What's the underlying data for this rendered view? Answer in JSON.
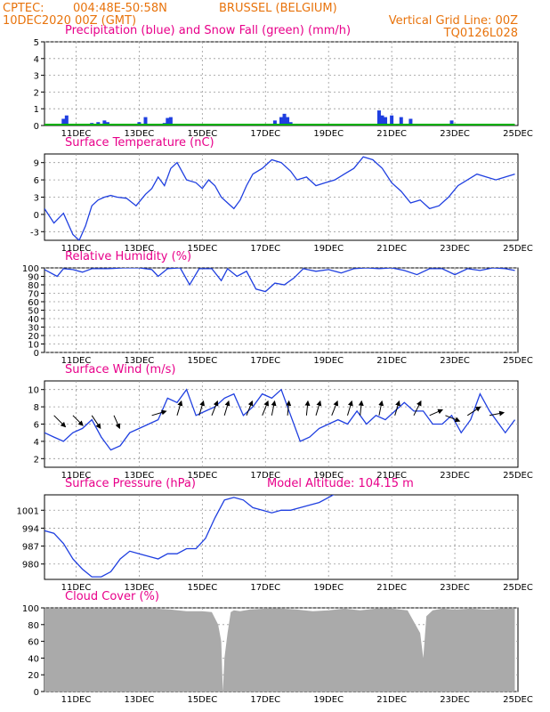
{
  "header": {
    "line1_left": "CPTEC:",
    "line1_coords": "004:48E-50:58N",
    "line1_station": "BRUSSEL (BELGIUM)",
    "line2_left": "10DEC2020 00Z (GMT)",
    "line2_right": "Vertical Grid Line: 00Z",
    "line3_right": "TQ0126L028"
  },
  "x_ticks": [
    "11DEC",
    "13DEC",
    "15DEC",
    "17DEC",
    "19DEC",
    "21DEC",
    "23DEC",
    "25DEC"
  ],
  "colors": {
    "header": "#e8730c",
    "title": "#e8008a",
    "line": "#1f3fe0",
    "precip": "#1f3fe0",
    "snow": "#00b000",
    "cloud": "#aaaaaa",
    "arrow": "#000000"
  },
  "chart_data": [
    {
      "type": "bar",
      "title": "Precipitation (blue) and Snow Fall (green) (mm/h)",
      "ylim": [
        0,
        5
      ],
      "yticks": [
        "0",
        "1",
        "2",
        "3",
        "4",
        "5"
      ],
      "series": [
        {
          "name": "Precipitation",
          "x": [
            0.5,
            0.6,
            0.7,
            1.2,
            1.5,
            1.7,
            1.9,
            2.0,
            2.2,
            2.4,
            2.8,
            3.0,
            3.2,
            3.8,
            3.9,
            4.0,
            4.2,
            4.4,
            4.6,
            5.0,
            5.2,
            5.5,
            7.0,
            7.3,
            7.5,
            7.6,
            7.7,
            7.8,
            8.0,
            10.6,
            10.7,
            10.8,
            11.0,
            11.3,
            11.6,
            11.9,
            12.9,
            13.1
          ],
          "values": [
            0.1,
            0.4,
            0.6,
            0.1,
            0.15,
            0.2,
            0.3,
            0.2,
            0.1,
            0.05,
            0.05,
            0.2,
            0.5,
            0.15,
            0.45,
            0.5,
            0.05,
            0.1,
            0.05,
            0.05,
            0.05,
            0.05,
            0.1,
            0.3,
            0.5,
            0.7,
            0.5,
            0.2,
            0.05,
            0.9,
            0.6,
            0.5,
            0.6,
            0.5,
            0.4,
            0.1,
            0.3,
            0.1
          ]
        },
        {
          "name": "Snow Fall",
          "x": [
            0,
            14.9
          ],
          "values": [
            0,
            0
          ]
        }
      ]
    },
    {
      "type": "line",
      "title": "Surface Temperature (nC)",
      "ylim": [
        -4.5,
        10.5
      ],
      "yticks": [
        "-3",
        "0",
        "3",
        "6",
        "9"
      ],
      "x": [
        0,
        0.3,
        0.6,
        0.9,
        1.1,
        1.3,
        1.5,
        1.7,
        1.9,
        2.1,
        2.3,
        2.6,
        2.9,
        3.2,
        3.4,
        3.6,
        3.8,
        4.0,
        4.2,
        4.5,
        4.8,
        5.0,
        5.2,
        5.4,
        5.6,
        5.8,
        6.0,
        6.2,
        6.4,
        6.6,
        6.9,
        7.2,
        7.5,
        7.8,
        8.0,
        8.3,
        8.6,
        8.9,
        9.2,
        9.5,
        9.8,
        10.1,
        10.4,
        10.7,
        11.0,
        11.3,
        11.6,
        11.9,
        12.2,
        12.5,
        12.8,
        13.1,
        13.4,
        13.7,
        14.0,
        14.3,
        14.6,
        14.9
      ],
      "values": [
        1,
        -1.5,
        0.2,
        -3.5,
        -4.5,
        -2,
        1.5,
        2.5,
        3,
        3.3,
        3,
        2.8,
        1.5,
        3.5,
        4.5,
        6.5,
        5,
        8,
        9,
        6,
        5.5,
        4.5,
        6,
        5,
        3,
        2,
        1,
        2.5,
        5,
        7,
        8,
        9.5,
        9,
        7.5,
        6,
        6.5,
        5,
        5.5,
        6,
        7,
        8,
        10,
        9.5,
        8,
        5.5,
        4,
        2,
        2.5,
        1,
        1.5,
        3,
        5,
        6,
        7,
        6.5,
        6,
        6.5,
        7
      ]
    },
    {
      "type": "line",
      "title": "Relative Humidity (%)",
      "ylim": [
        0,
        100
      ],
      "yticks": [
        "0",
        "10",
        "20",
        "30",
        "40",
        "50",
        "60",
        "70",
        "80",
        "90",
        "100"
      ],
      "x": [
        0,
        0.4,
        0.6,
        0.9,
        1.2,
        1.5,
        2.0,
        2.5,
        3.0,
        3.4,
        3.6,
        3.9,
        4.3,
        4.6,
        4.9,
        5.3,
        5.6,
        5.8,
        6.1,
        6.4,
        6.7,
        7.0,
        7.3,
        7.6,
        7.9,
        8.2,
        8.6,
        9.0,
        9.4,
        9.8,
        10.2,
        10.6,
        11.0,
        11.4,
        11.8,
        12.2,
        12.6,
        13.0,
        13.4,
        13.8,
        14.2,
        14.6,
        14.9
      ],
      "values": [
        98,
        90,
        99,
        98,
        95,
        99,
        99,
        100,
        100,
        98,
        90,
        99,
        100,
        80,
        99,
        99,
        85,
        99,
        90,
        96,
        75,
        72,
        82,
        80,
        88,
        99,
        96,
        98,
        94,
        99,
        100,
        99,
        100,
        97,
        92,
        99,
        99,
        92,
        99,
        97,
        100,
        99,
        97
      ]
    },
    {
      "type": "line",
      "title": "Surface Wind (m/s)",
      "ylim": [
        1,
        11
      ],
      "yticks": [
        "2",
        "4",
        "6",
        "8",
        "10"
      ],
      "x": [
        0,
        0.3,
        0.6,
        0.9,
        1.2,
        1.5,
        1.8,
        2.1,
        2.4,
        2.7,
        3.0,
        3.3,
        3.6,
        3.9,
        4.2,
        4.5,
        4.8,
        5.1,
        5.4,
        5.7,
        6.0,
        6.3,
        6.6,
        6.9,
        7.2,
        7.5,
        7.8,
        8.1,
        8.4,
        8.7,
        9.0,
        9.3,
        9.6,
        9.9,
        10.2,
        10.5,
        10.8,
        11.1,
        11.4,
        11.7,
        12.0,
        12.3,
        12.6,
        12.9,
        13.2,
        13.5,
        13.8,
        14.1,
        14.4,
        14.6,
        14.9
      ],
      "values": [
        5,
        4.5,
        4,
        5,
        5.5,
        6.5,
        4.5,
        3,
        3.5,
        5,
        5.5,
        6,
        6.5,
        9,
        8.5,
        10,
        7,
        7.5,
        8,
        9,
        9.5,
        7,
        8,
        9.5,
        9,
        10,
        7,
        4,
        4.5,
        5.5,
        6,
        6.5,
        6,
        7.5,
        6,
        7,
        6.5,
        7.5,
        8.5,
        7.5,
        7.5,
        6,
        6,
        7,
        5,
        6.5,
        9.5,
        7.5,
        6,
        5,
        6.5
      ],
      "wind_vectors": [
        {
          "x": 0.3,
          "u": 0.8,
          "v": -0.8
        },
        {
          "x": 0.9,
          "u": 0.7,
          "v": -0.7
        },
        {
          "x": 1.5,
          "u": 0.6,
          "v": -0.9
        },
        {
          "x": 2.2,
          "u": 0.4,
          "v": -0.9
        },
        {
          "x": 3.4,
          "u": 1.0,
          "v": 0.3
        },
        {
          "x": 4.2,
          "u": 0.3,
          "v": 1.0
        },
        {
          "x": 4.9,
          "u": 0.3,
          "v": 1.0
        },
        {
          "x": 5.3,
          "u": 0.4,
          "v": 1.0
        },
        {
          "x": 5.7,
          "u": 0.3,
          "v": 1.0
        },
        {
          "x": 6.4,
          "u": 0.4,
          "v": 1.0
        },
        {
          "x": 6.9,
          "u": 0.4,
          "v": 1.0
        },
        {
          "x": 7.2,
          "u": 0.2,
          "v": 1.0
        },
        {
          "x": 7.7,
          "u": 0.1,
          "v": 1.0
        },
        {
          "x": 8.3,
          "u": 0.1,
          "v": 1.0
        },
        {
          "x": 8.6,
          "u": 0.3,
          "v": 1.0
        },
        {
          "x": 9.1,
          "u": 0.4,
          "v": 1.0
        },
        {
          "x": 9.6,
          "u": 0.3,
          "v": 1.0
        },
        {
          "x": 10.0,
          "u": 0.1,
          "v": 1.0
        },
        {
          "x": 10.6,
          "u": 0.2,
          "v": 1.0
        },
        {
          "x": 11.1,
          "u": 0.3,
          "v": 1.0
        },
        {
          "x": 11.7,
          "u": 0.5,
          "v": 1.0
        },
        {
          "x": 12.2,
          "u": 0.9,
          "v": 0.4
        },
        {
          "x": 12.7,
          "u": 1.0,
          "v": -0.4
        },
        {
          "x": 13.4,
          "u": 0.9,
          "v": 0.6
        },
        {
          "x": 14.1,
          "u": 1.0,
          "v": 0.2
        }
      ]
    },
    {
      "type": "line",
      "title": "Surface Pressure (hPa)",
      "subtitle": "Model Altitude: 104.15 m",
      "ylim": [
        974,
        1007
      ],
      "yticks": [
        "980",
        "987",
        "994",
        "1001"
      ],
      "x": [
        0,
        0.3,
        0.6,
        0.9,
        1.2,
        1.5,
        1.8,
        2.1,
        2.4,
        2.7,
        3.0,
        3.3,
        3.6,
        3.9,
        4.2,
        4.5,
        4.8,
        5.1,
        5.4,
        5.7,
        6.0,
        6.3,
        6.6,
        6.9,
        7.2,
        7.5,
        7.8,
        8.1,
        8.4,
        8.7,
        9.0,
        9.3
      ],
      "values": [
        993,
        992,
        988,
        982,
        978,
        975,
        975,
        977,
        982,
        985,
        984,
        983,
        982,
        984,
        984,
        986,
        986,
        990,
        998,
        1005,
        1006,
        1005,
        1002,
        1001,
        1000,
        1001,
        1001,
        1002,
        1003,
        1004,
        1006,
        1008
      ]
    },
    {
      "type": "area",
      "title": "Cloud Cover (%)",
      "ylim": [
        0,
        100
      ],
      "yticks": [
        "0",
        "20",
        "40",
        "60",
        "80",
        "100"
      ],
      "x": [
        0,
        0.5,
        1.0,
        1.5,
        2.0,
        2.5,
        3.0,
        3.5,
        4.0,
        4.5,
        5.0,
        5.3,
        5.5,
        5.6,
        5.65,
        5.7,
        5.8,
        5.9,
        6.0,
        6.2,
        6.5,
        7.0,
        7.5,
        8.0,
        8.5,
        9.0,
        9.5,
        10.0,
        10.5,
        11.0,
        11.5,
        11.9,
        12.0,
        12.1,
        12.3,
        12.6,
        13.0,
        13.5,
        14.0,
        14.5,
        14.9
      ],
      "values": [
        99,
        99,
        99,
        99,
        99,
        99,
        99,
        99,
        98,
        96,
        96,
        95,
        80,
        60,
        0,
        40,
        70,
        95,
        97,
        96,
        98,
        99,
        99,
        98,
        96,
        97,
        99,
        97,
        99,
        99,
        97,
        70,
        40,
        90,
        97,
        99,
        98,
        99,
        98,
        99,
        99
      ]
    }
  ]
}
